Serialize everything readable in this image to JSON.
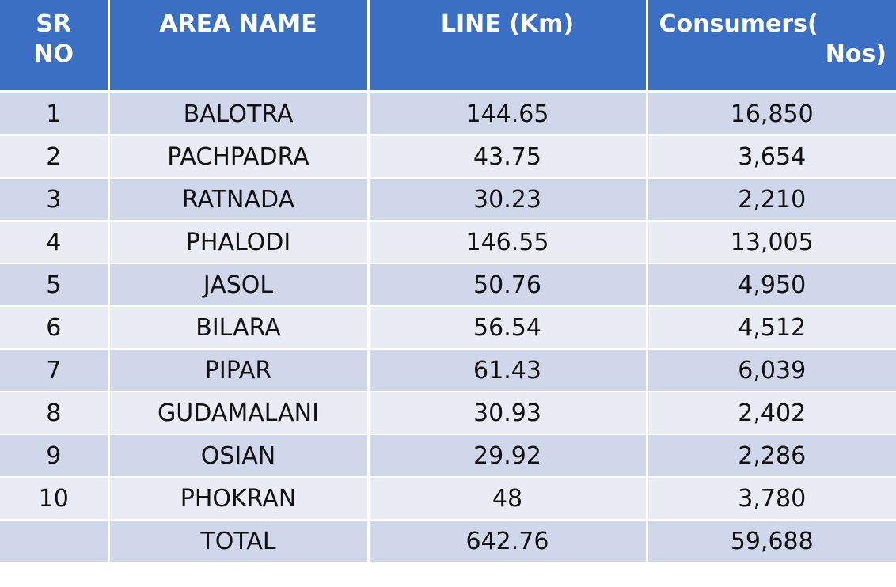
{
  "chart_data": {
    "type": "table",
    "columns": [
      "SR NO",
      "AREA NAME",
      "LINE (Km)",
      "Consumers( Nos)"
    ],
    "rows": [
      {
        "sr": "1",
        "area": "BALOTRA",
        "line": "144.65",
        "consumers": "16,850"
      },
      {
        "sr": "2",
        "area": "PACHPADRA",
        "line": "43.75",
        "consumers": "3,654"
      },
      {
        "sr": "3",
        "area": "RATNADA",
        "line": "30.23",
        "consumers": "2,210"
      },
      {
        "sr": "4",
        "area": "PHALODI",
        "line": "146.55",
        "consumers": "13,005"
      },
      {
        "sr": "5",
        "area": "JASOL",
        "line": "50.76",
        "consumers": "4,950"
      },
      {
        "sr": "6",
        "area": "BILARA",
        "line": "56.54",
        "consumers": "4,512"
      },
      {
        "sr": "7",
        "area": "PIPAR",
        "line": "61.43",
        "consumers": "6,039"
      },
      {
        "sr": "8",
        "area": "GUDAMALANI",
        "line": "30.93",
        "consumers": "2,402"
      },
      {
        "sr": "9",
        "area": "OSIAN",
        "line": "29.92",
        "consumers": "2,286"
      },
      {
        "sr": "10",
        "area": "PHOKRAN",
        "line": "48",
        "consumers": "3,780"
      },
      {
        "sr": "",
        "area": "TOTAL",
        "line": "642.76",
        "consumers": "59,688"
      }
    ]
  },
  "header": {
    "sr_line1": "SR",
    "sr_line2": "NO",
    "area": "AREA NAME",
    "line": "LINE (Km)",
    "consumers_line1": "Consumers(",
    "consumers_line2": "Nos)"
  },
  "colors": {
    "header_bg": "#3A6FC4",
    "row_band_dark": "#D0D7EA",
    "row_band_light": "#E9EBF5"
  }
}
